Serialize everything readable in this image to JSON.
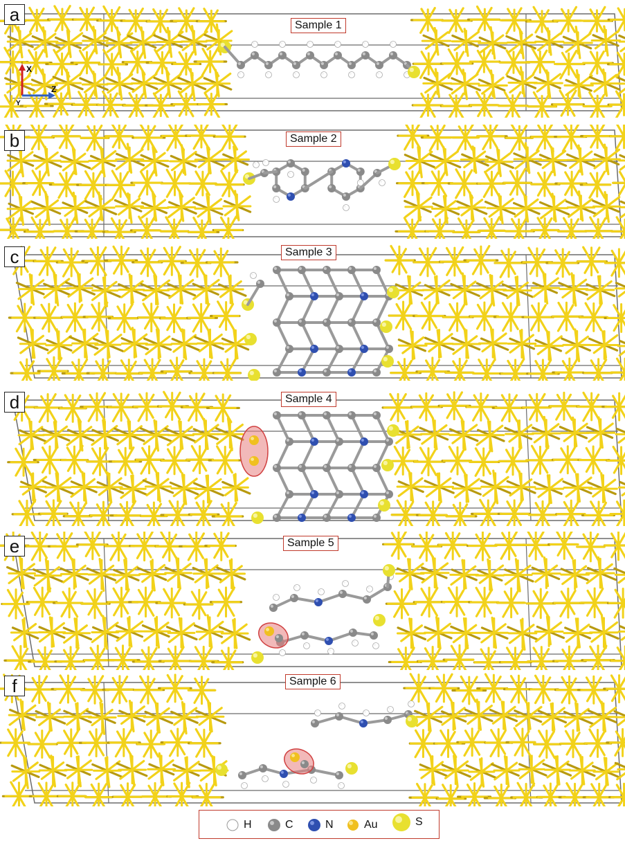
{
  "panels": [
    {
      "letter": "a",
      "label": "Sample 1"
    },
    {
      "letter": "b",
      "label": "Sample 2"
    },
    {
      "letter": "c",
      "label": "Sample 3"
    },
    {
      "letter": "d",
      "label": "Sample 4"
    },
    {
      "letter": "e",
      "label": "Sample 5"
    },
    {
      "letter": "f",
      "label": "Sample 6"
    }
  ],
  "axes": {
    "x": "X",
    "y": "Y",
    "z": "Z"
  },
  "legend": [
    {
      "symbol": "H",
      "color": "#ffffff"
    },
    {
      "symbol": "C",
      "color": "#8a8a8a"
    },
    {
      "symbol": "N",
      "color": "#2f4fb0"
    },
    {
      "symbol": "Au",
      "color": "#f0c020"
    },
    {
      "symbol": "S",
      "color": "#e8e030"
    }
  ],
  "colors": {
    "gold_bond": "#f2d21a",
    "box": "#6b6b6b",
    "highlight": "#e88080",
    "label_border": "#c0392b"
  }
}
